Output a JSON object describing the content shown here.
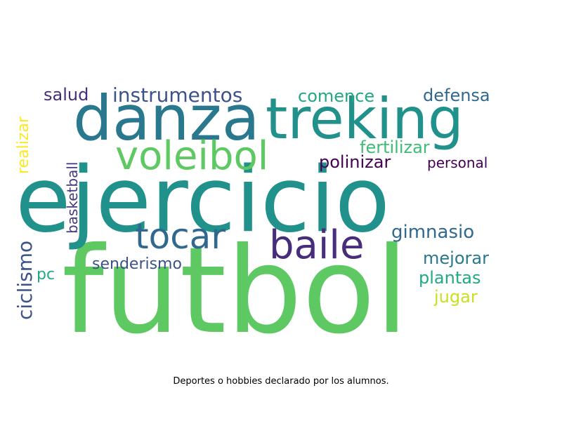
{
  "caption": "Deportes o hobbies declarado por los alumnos.",
  "words": [
    {
      "text": "futbol",
      "color": "#5ec962",
      "vertical": false
    },
    {
      "text": "ejercicio",
      "color": "#21918c",
      "vertical": false
    },
    {
      "text": "danza",
      "color": "#2a788e",
      "vertical": false
    },
    {
      "text": "treking",
      "color": "#21918c",
      "vertical": false
    },
    {
      "text": "voleibol",
      "color": "#5ec962",
      "vertical": false
    },
    {
      "text": "baile",
      "color": "#472d7b",
      "vertical": false
    },
    {
      "text": "tocar",
      "color": "#31688e",
      "vertical": false
    },
    {
      "text": "instrumentos",
      "color": "#3b528b",
      "vertical": false
    },
    {
      "text": "salud",
      "color": "#472d7b",
      "vertical": false
    },
    {
      "text": "comence",
      "color": "#22a884",
      "vertical": false
    },
    {
      "text": "defensa",
      "color": "#31688e",
      "vertical": false
    },
    {
      "text": "fertilizar",
      "color": "#3fbc73",
      "vertical": false
    },
    {
      "text": "polinizar",
      "color": "#440154",
      "vertical": false
    },
    {
      "text": "personal",
      "color": "#440154",
      "vertical": false
    },
    {
      "text": "gimnasio",
      "color": "#31688e",
      "vertical": false
    },
    {
      "text": "mejorar",
      "color": "#2a788e",
      "vertical": false
    },
    {
      "text": "plantas",
      "color": "#22a884",
      "vertical": false
    },
    {
      "text": "jugar",
      "color": "#c8e020",
      "vertical": false
    },
    {
      "text": "senderismo",
      "color": "#3b528b",
      "vertical": false
    },
    {
      "text": "pc",
      "color": "#22a884",
      "vertical": false
    },
    {
      "text": "ciclismo",
      "color": "#3b528b",
      "vertical": true
    },
    {
      "text": "realizar",
      "color": "#fde725",
      "vertical": true
    },
    {
      "text": "basketball",
      "color": "#443983",
      "vertical": true
    }
  ]
}
